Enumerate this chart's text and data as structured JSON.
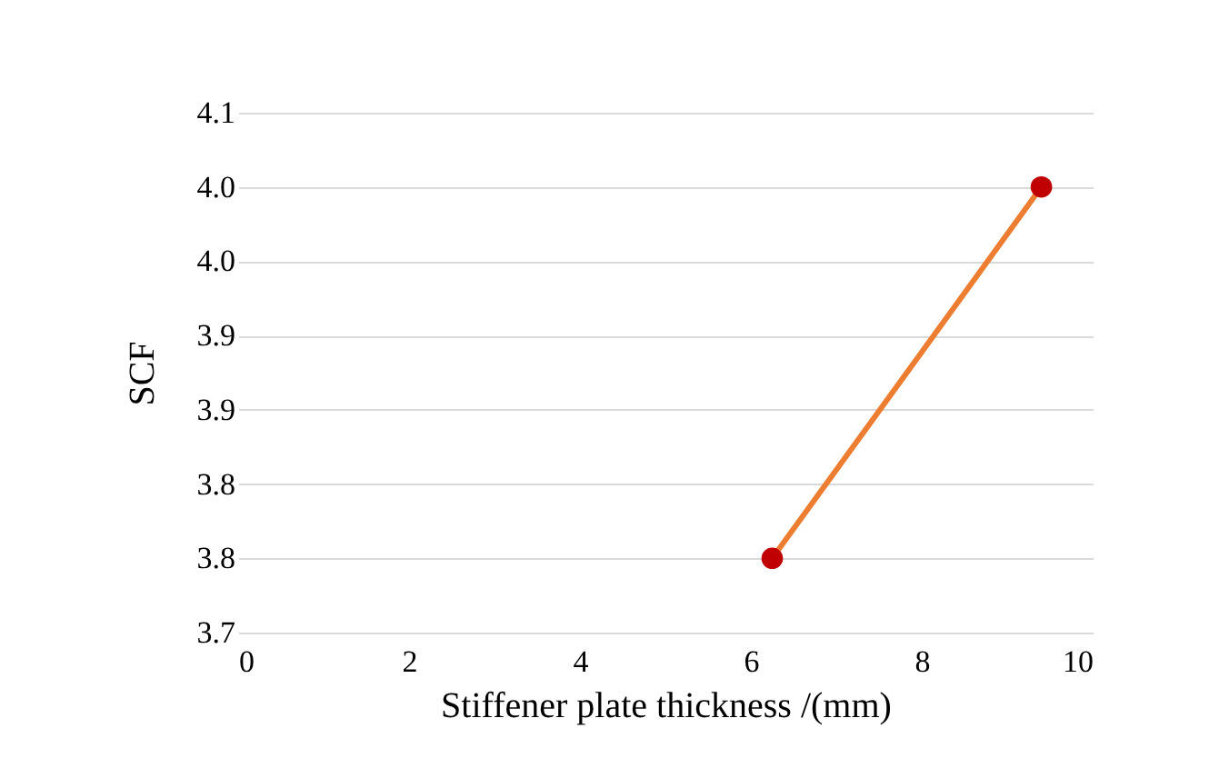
{
  "chart_data": {
    "type": "line",
    "xlabel": "Stiffener plate thickness /(mm)",
    "ylabel": "SCF",
    "x": [
      6.25,
      9.4
    ],
    "series": [
      {
        "color": "#ed7d31",
        "colors": [
          "#c00000",
          "#c00000"
        ],
        "values": [
          3.75,
          4.0
        ]
      }
    ],
    "xlim": [
      0,
      10
    ],
    "xticks": [
      0,
      2,
      4,
      6,
      8,
      10
    ],
    "ylim": [
      3.7,
      4.05
    ],
    "yticks": [
      {
        "value": 3.7,
        "label": "3.7"
      },
      {
        "value": 3.75,
        "label": "3.8"
      },
      {
        "value": 3.8,
        "label": "3.8"
      },
      {
        "value": 3.85,
        "label": "3.9"
      },
      {
        "value": 3.9,
        "label": "3.9"
      },
      {
        "value": 3.95,
        "label": "4.0"
      },
      {
        "value": 4.0,
        "label": "4.0"
      },
      {
        "value": 4.05,
        "label": "4.1"
      }
    ],
    "grid": "y",
    "marker": "circle",
    "line_style": "solid"
  }
}
